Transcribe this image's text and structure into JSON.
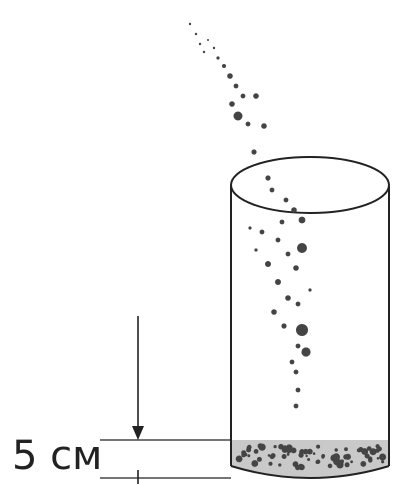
{
  "diagram": {
    "measurement_label": "5 см",
    "colors": {
      "outline": "#222222",
      "sediment": "#c9c9c9",
      "particle": "#444444"
    },
    "icons": {
      "container": "glass-cylinder-icon",
      "arrow": "arrow-down-icon"
    }
  }
}
